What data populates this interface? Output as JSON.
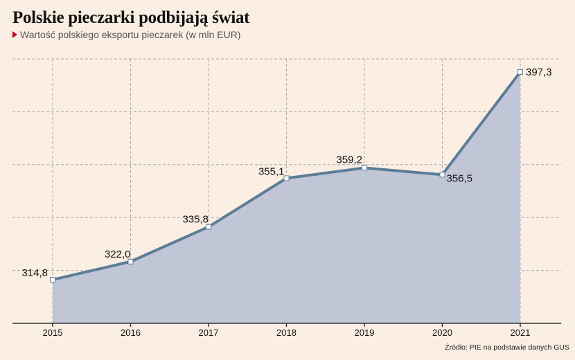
{
  "header": {
    "title": "Polskie pieczarki podbijają świat",
    "subtitle": "Wartość polskiego eksportu pieczarek (w mln EUR)"
  },
  "footer": {
    "source": "Źródło: PIE na podstawie danych GUS"
  },
  "colors": {
    "background": "#fbeee3",
    "line": "#5c7d97",
    "area": "#c1c6d6",
    "grid": "#a9a9a9",
    "accent": "#d0021b"
  },
  "chart_data": {
    "type": "area",
    "categories": [
      "2015",
      "2016",
      "2017",
      "2018",
      "2019",
      "2020",
      "2021"
    ],
    "values": [
      314.8,
      322.0,
      335.8,
      355.1,
      359.2,
      356.5,
      397.3
    ],
    "value_labels": [
      "314,8",
      "322,0",
      "335,8",
      "355,1",
      "359,2",
      "356,5",
      "397,3"
    ],
    "title": "Polskie pieczarki podbijają świat",
    "subtitle": "Wartość polskiego eksportu pieczarek (w mln EUR)",
    "xlabel": "",
    "ylabel": "",
    "ylim": [
      297.5,
      402.5
    ],
    "grid": true
  }
}
